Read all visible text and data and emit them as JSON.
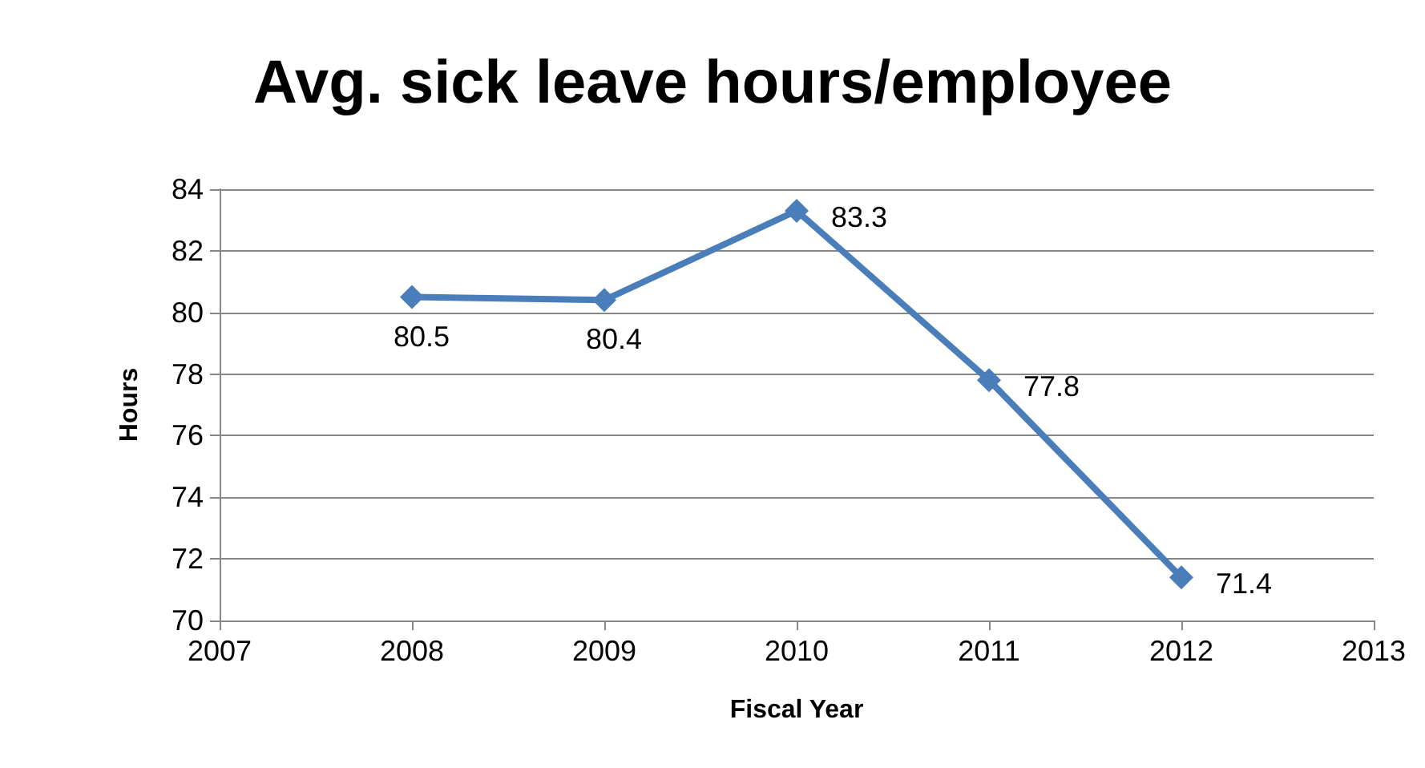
{
  "chart_data": {
    "type": "line",
    "title": "Avg. sick leave hours/employee",
    "xlabel": "Fiscal Year",
    "ylabel": "Hours",
    "x": [
      2008,
      2009,
      2010,
      2011,
      2012
    ],
    "series": [
      {
        "color": "#4a7ebb",
        "values": [
          80.5,
          80.4,
          83.3,
          77.8,
          71.4
        ]
      }
    ],
    "xlim": [
      2007,
      2013
    ],
    "xticks": [
      2007,
      2008,
      2009,
      2010,
      2011,
      2012,
      2013
    ],
    "ylim": [
      70,
      84
    ],
    "yticks": [
      70,
      72,
      74,
      76,
      78,
      80,
      82,
      84
    ],
    "grid": "y",
    "marker": "diamond",
    "line_style": "solid",
    "data_labels": true
  }
}
